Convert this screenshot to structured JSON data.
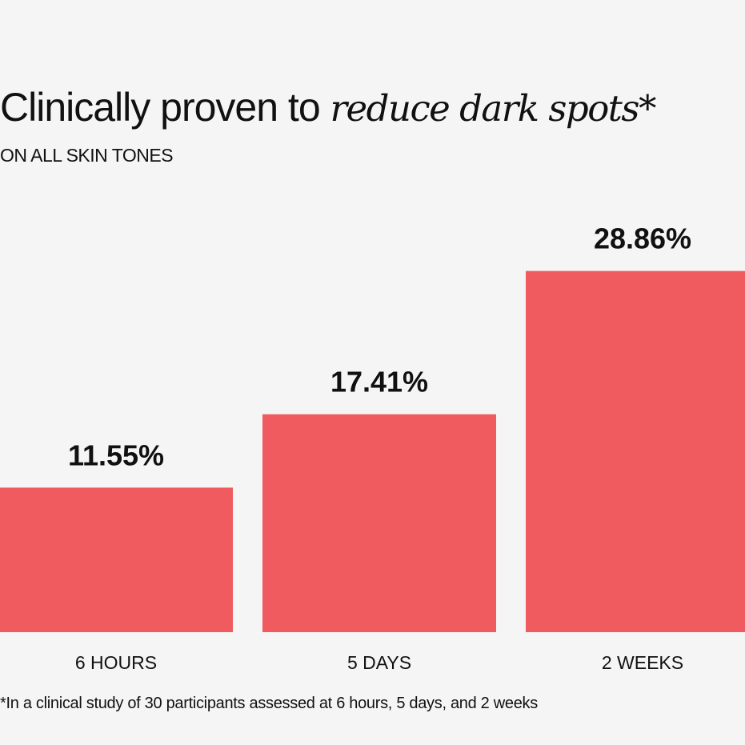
{
  "heading": {
    "prefix": "Clinically proven to ",
    "emphasis": "reduce dark spots*"
  },
  "subheading": "ON ALL SKIN TONES",
  "footnote": "*In a clinical study of 30 participants assessed at 6 hours, 5 days, and 2 weeks",
  "colors": {
    "bar": "#ef5b5e",
    "background": "#f5f5f5",
    "text": "#111111"
  },
  "chart_data": {
    "type": "bar",
    "categories": [
      "6 HOURS",
      "5 DAYS",
      "2 WEEKS"
    ],
    "values": [
      11.55,
      17.41,
      28.86
    ],
    "value_labels": [
      "11.55%",
      "17.41%",
      "28.86%"
    ],
    "ylim": [
      0,
      50
    ],
    "grid": false,
    "legend": "none"
  }
}
